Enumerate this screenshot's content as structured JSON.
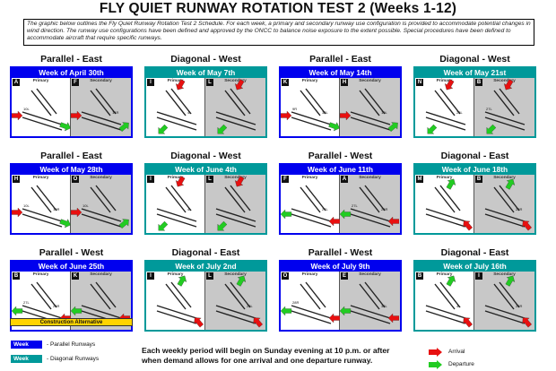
{
  "page": {
    "title": "FLY QUIET RUNWAY ROTATION TEST 2 (Weeks 1-12)",
    "intro": "The graphic below outlines the Fly Quiet Runway Rotation Test 2 Schedule. For each week, a primary and secondary runway use configuration is provided to accommodate potential changes in wind direction. The runway use configurations have been defined and approved by the ONCC to balance noise exposure to the extent possible. Special procedures have been defined to accommodate aircraft that require specific runways."
  },
  "labels": {
    "primary": "Primary",
    "secondary": "Secondary"
  },
  "colors": {
    "parallel": "#0000ee",
    "diagonal": "#00999a",
    "arrival": "#e81010",
    "departure": "#22cc22"
  },
  "weeks": [
    {
      "config": "Parallel - East",
      "type": "parallel",
      "week": "Week of April 30th",
      "primary_letter": "A",
      "secondary_letter": "F",
      "rwy_p": [
        "10L",
        ""
      ],
      "rwy_s": [
        "",
        "14R"
      ]
    },
    {
      "config": "Diagonal - West",
      "type": "diagonal",
      "week": "Week of May 7th",
      "primary_letter": "I",
      "secondary_letter": "L",
      "rwy_p": [
        "",
        "4L"
      ],
      "rwy_s": [
        "",
        ""
      ]
    },
    {
      "config": "Parallel - East",
      "type": "parallel",
      "week": "Week of May 14th",
      "primary_letter": "K",
      "secondary_letter": "H",
      "rwy_p": [
        "9R",
        "32L"
      ],
      "rwy_s": [
        "",
        "10L"
      ]
    },
    {
      "config": "Diagonal - West",
      "type": "diagonal",
      "week": "Week of May 21st",
      "primary_letter": "N",
      "secondary_letter": "B",
      "rwy_p": [
        "",
        "22L"
      ],
      "rwy_s": [
        "27L",
        ""
      ]
    },
    {
      "config": "Parallel - East",
      "type": "parallel",
      "week": "Week of May 28th",
      "primary_letter": "H",
      "secondary_letter": "O",
      "rwy_p": [
        "10L",
        "10R"
      ],
      "rwy_s": [
        "10L",
        ""
      ]
    },
    {
      "config": "Diagonal - West",
      "type": "diagonal",
      "week": "Week of June 4th",
      "primary_letter": "I",
      "secondary_letter": "L",
      "rwy_p": [
        "",
        "4L"
      ],
      "rwy_s": [
        "",
        ""
      ]
    },
    {
      "config": "Parallel - West",
      "type": "parallel",
      "week": "Week of June 11th",
      "primary_letter": "F",
      "secondary_letter": "A",
      "rwy_p": [
        "",
        "27L"
      ],
      "rwy_s": [
        "27L",
        "28R"
      ]
    },
    {
      "config": "Diagonal - East",
      "type": "diagonal",
      "week": "Week of June 18th",
      "primary_letter": "M",
      "secondary_letter": "B",
      "rwy_p": [
        "",
        ""
      ],
      "rwy_s": [
        "",
        "22R"
      ]
    },
    {
      "config": "Parallel - West",
      "type": "parallel",
      "week": "Week of June 25th",
      "primary_letter": "B",
      "secondary_letter": "K",
      "rwy_p": [
        "27L",
        "28R"
      ],
      "rwy_s": [
        "",
        ""
      ],
      "construction": "Construction Alternative"
    },
    {
      "config": "Diagonal - East",
      "type": "diagonal",
      "week": "Week of July 2nd",
      "primary_letter": "I",
      "secondary_letter": "L",
      "rwy_p": [
        "",
        ""
      ],
      "rwy_s": [
        "",
        "22L"
      ]
    },
    {
      "config": "Parallel - West",
      "type": "parallel",
      "week": "Week of July 9th",
      "primary_letter": "O",
      "secondary_letter": "E",
      "rwy_p": [
        "28R",
        ""
      ],
      "rwy_s": [
        "",
        "32L"
      ]
    },
    {
      "config": "Diagonal - East",
      "type": "diagonal",
      "week": "Week of July 16th",
      "primary_letter": "B",
      "secondary_letter": "I",
      "rwy_p": [
        "",
        "4L"
      ],
      "rwy_s": [
        "",
        "22R"
      ]
    }
  ],
  "legend": {
    "week_label": "Week",
    "parallel": "- Parallel Runways",
    "diagonal": "- Diagonal Runways",
    "arrival": "Arrival",
    "departure": "Departure"
  },
  "note": "Each weekly period will begin on Sunday evening at 10 p.m. or after when demand allows for one arrival and one departure runway."
}
